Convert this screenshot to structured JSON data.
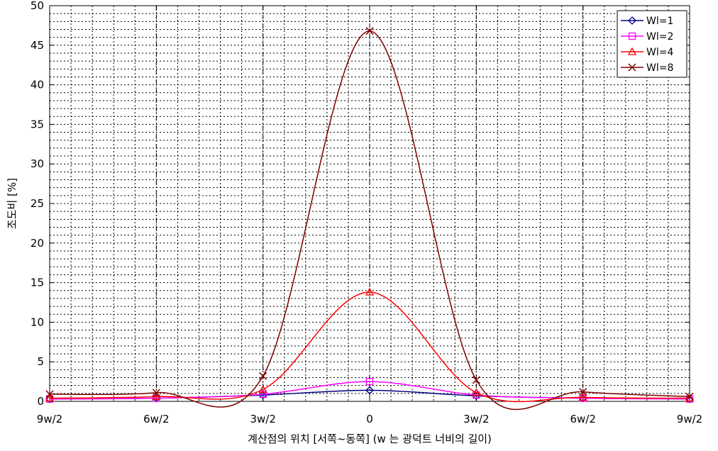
{
  "chart_data": {
    "type": "line",
    "title": "",
    "xlabel": "계산점의 위치 [서쪽~동쪽] (w 는 광덕트 너비의 길이)",
    "ylabel": "조도비 [%]",
    "categories": [
      "9w/2",
      "6w/2",
      "3w/2",
      "0",
      "3w/2",
      "6w/2",
      "9w/2"
    ],
    "x": [
      -4.5,
      -3,
      -1.5,
      0,
      1.5,
      3,
      4.5
    ],
    "ylim": [
      0,
      50
    ],
    "yticks": [
      0,
      5,
      10,
      15,
      20,
      25,
      30,
      35,
      40,
      45,
      50
    ],
    "grid": true,
    "legend_position": "top-right",
    "series": [
      {
        "name": "Wl=1",
        "color": "#000080",
        "marker": "diamond",
        "values": [
          0.3,
          0.4,
          0.8,
          1.4,
          0.7,
          0.4,
          0.3
        ]
      },
      {
        "name": "Wl=2",
        "color": "#ff00ff",
        "marker": "square",
        "values": [
          0.3,
          0.4,
          0.9,
          2.5,
          0.8,
          0.4,
          0.3
        ]
      },
      {
        "name": "Wl=4",
        "color": "#ff0000",
        "marker": "triangle",
        "values": [
          0.4,
          0.6,
          1.5,
          13.8,
          1.1,
          0.5,
          0.4
        ]
      },
      {
        "name": "Wl=8",
        "color": "#800000",
        "marker": "x",
        "values": [
          0.9,
          1.1,
          3.2,
          46.8,
          2.7,
          1.2,
          0.6
        ]
      }
    ]
  }
}
